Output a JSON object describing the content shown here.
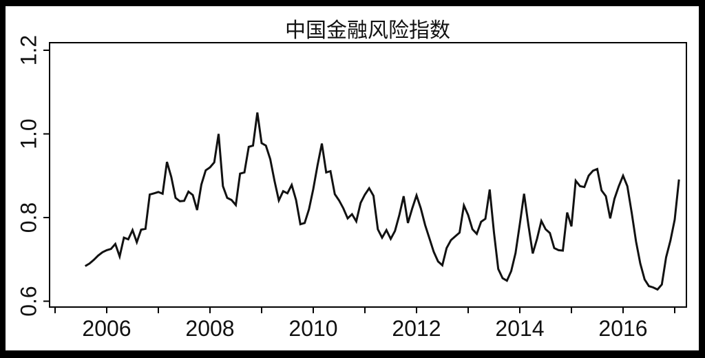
{
  "chart_data": {
    "type": "line",
    "title": "中国金融风险指数",
    "series_name": "中国金融风险指数",
    "frequency": "monthly",
    "x_start": "2005-08",
    "x_end": "2017-02",
    "values": [
      0.684,
      0.69,
      0.699,
      0.709,
      0.717,
      0.722,
      0.725,
      0.737,
      0.707,
      0.752,
      0.748,
      0.77,
      0.741,
      0.771,
      0.773,
      0.855,
      0.858,
      0.861,
      0.857,
      0.933,
      0.897,
      0.847,
      0.839,
      0.84,
      0.862,
      0.854,
      0.818,
      0.879,
      0.913,
      0.92,
      0.932,
      1.0,
      0.875,
      0.847,
      0.842,
      0.83,
      0.905,
      0.908,
      0.969,
      0.972,
      1.051,
      0.978,
      0.972,
      0.94,
      0.887,
      0.841,
      0.863,
      0.858,
      0.878,
      0.842,
      0.784,
      0.787,
      0.82,
      0.868,
      0.925,
      0.977,
      0.908,
      0.911,
      0.856,
      0.841,
      0.822,
      0.798,
      0.808,
      0.791,
      0.835,
      0.855,
      0.87,
      0.852,
      0.772,
      0.752,
      0.77,
      0.749,
      0.768,
      0.806,
      0.851,
      0.787,
      0.822,
      0.853,
      0.822,
      0.782,
      0.75,
      0.718,
      0.695,
      0.686,
      0.727,
      0.746,
      0.755,
      0.764,
      0.829,
      0.806,
      0.772,
      0.761,
      0.79,
      0.797,
      0.867,
      0.764,
      0.677,
      0.655,
      0.649,
      0.672,
      0.715,
      0.784,
      0.857,
      0.782,
      0.714,
      0.749,
      0.792,
      0.772,
      0.763,
      0.727,
      0.722,
      0.721,
      0.812,
      0.779,
      0.888,
      0.875,
      0.873,
      0.9,
      0.912,
      0.916,
      0.865,
      0.851,
      0.798,
      0.845,
      0.875,
      0.9,
      0.875,
      0.812,
      0.743,
      0.69,
      0.652,
      0.636,
      0.633,
      0.628,
      0.64,
      0.705,
      0.745,
      0.795,
      0.891
    ],
    "ylim": [
      0.6,
      1.2
    ],
    "y_ticks": [
      0.6,
      0.8,
      1.0,
      1.2
    ],
    "y_tick_labels": [
      "0.6",
      "0.8",
      "1.0",
      "1.2"
    ],
    "x_tick_years": [
      2005,
      2006,
      2007,
      2008,
      2009,
      2010,
      2011,
      2012,
      2013,
      2014,
      2015,
      2016,
      2017
    ],
    "x_labeled_years": [
      "2006",
      "2008",
      "2010",
      "2012",
      "2014",
      "2016"
    ],
    "grid": "off",
    "legend": "none",
    "line_color": "#111111",
    "axis_color": "#000000",
    "plot_background": "#ffffff",
    "page_background": "#000000"
  }
}
